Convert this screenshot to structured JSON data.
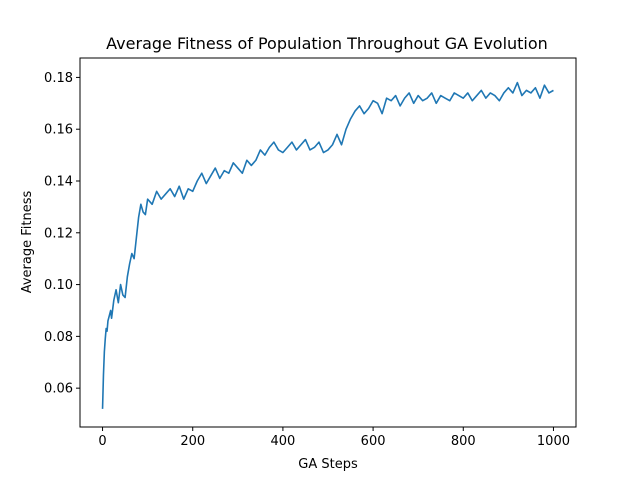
{
  "chart_data": {
    "type": "line",
    "title": "Average Fitness of Population Throughout GA Evolution",
    "xlabel": "GA Steps",
    "ylabel": "Average Fitness",
    "xlim": [
      -50,
      1050
    ],
    "ylim": [
      0.045,
      0.1875
    ],
    "xticks": [
      0,
      200,
      400,
      600,
      800,
      1000
    ],
    "yticks": [
      0.06,
      0.08,
      0.1,
      0.12,
      0.14,
      0.16,
      0.18
    ],
    "xtick_labels": [
      "0",
      "200",
      "400",
      "600",
      "800",
      "1000"
    ],
    "ytick_labels": [
      "0.06",
      "0.08",
      "0.10",
      "0.12",
      "0.14",
      "0.16",
      "0.18"
    ],
    "grid": false,
    "line_color": "#1f77b4",
    "series": [
      {
        "x": [
          0,
          2,
          4,
          6,
          8,
          10,
          12,
          15,
          18,
          20,
          25,
          30,
          35,
          40,
          45,
          50,
          55,
          60,
          65,
          70,
          75,
          80,
          85,
          90,
          95,
          100,
          110,
          120,
          130,
          140,
          150,
          160,
          170,
          180,
          190,
          200,
          210,
          220,
          230,
          240,
          250,
          260,
          270,
          280,
          290,
          300,
          310,
          320,
          330,
          340,
          350,
          360,
          370,
          380,
          390,
          400,
          410,
          420,
          430,
          440,
          450,
          460,
          470,
          480,
          490,
          500,
          510,
          520,
          530,
          540,
          550,
          560,
          570,
          580,
          590,
          600,
          610,
          620,
          630,
          640,
          650,
          660,
          670,
          680,
          690,
          700,
          710,
          720,
          730,
          740,
          750,
          760,
          770,
          780,
          790,
          800,
          810,
          820,
          830,
          840,
          850,
          860,
          870,
          880,
          890,
          900,
          910,
          920,
          930,
          940,
          950,
          960,
          970,
          980,
          990,
          1000
        ],
        "y": [
          0.052,
          0.065,
          0.074,
          0.079,
          0.083,
          0.082,
          0.086,
          0.088,
          0.09,
          0.087,
          0.094,
          0.098,
          0.093,
          0.1,
          0.096,
          0.095,
          0.103,
          0.108,
          0.112,
          0.11,
          0.118,
          0.126,
          0.131,
          0.128,
          0.127,
          0.133,
          0.131,
          0.136,
          0.133,
          0.135,
          0.137,
          0.134,
          0.138,
          0.133,
          0.137,
          0.136,
          0.14,
          0.143,
          0.139,
          0.142,
          0.145,
          0.141,
          0.144,
          0.143,
          0.147,
          0.145,
          0.143,
          0.148,
          0.146,
          0.148,
          0.152,
          0.15,
          0.153,
          0.155,
          0.152,
          0.151,
          0.153,
          0.155,
          0.152,
          0.154,
          0.156,
          0.152,
          0.153,
          0.155,
          0.151,
          0.152,
          0.154,
          0.158,
          0.154,
          0.16,
          0.164,
          0.167,
          0.169,
          0.166,
          0.168,
          0.171,
          0.17,
          0.166,
          0.172,
          0.171,
          0.173,
          0.169,
          0.172,
          0.174,
          0.17,
          0.173,
          0.171,
          0.172,
          0.174,
          0.17,
          0.173,
          0.172,
          0.171,
          0.174,
          0.173,
          0.172,
          0.174,
          0.171,
          0.173,
          0.175,
          0.172,
          0.174,
          0.173,
          0.171,
          0.174,
          0.176,
          0.174,
          0.178,
          0.173,
          0.175,
          0.174,
          0.176,
          0.172,
          0.177,
          0.174,
          0.175
        ]
      }
    ]
  }
}
